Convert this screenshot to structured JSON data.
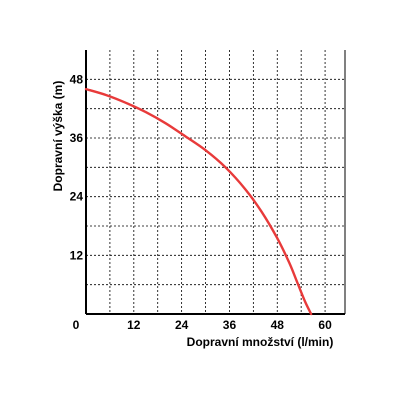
{
  "chart_data": {
    "type": "line",
    "xlabel": "Dopravní množství (l/min)",
    "ylabel": "Dopravní výška (m)",
    "xlim": [
      0,
      65
    ],
    "ylim": [
      0,
      54
    ],
    "x_ticks": [
      0,
      12,
      24,
      36,
      48,
      60
    ],
    "x_tick_labels": [
      "0",
      "12",
      "24",
      "36",
      "48",
      "60"
    ],
    "y_ticks": [
      12,
      24,
      36,
      48
    ],
    "y_tick_labels": [
      "12",
      "24",
      "36",
      "48"
    ],
    "x_minor_grid": [
      6,
      18,
      30,
      42,
      54
    ],
    "y_minor_grid": [
      6,
      18,
      30,
      42
    ],
    "grid": true,
    "series": [
      {
        "color": "#e83a3a",
        "x": [
          0,
          5,
          10,
          15,
          20,
          25,
          30,
          35,
          40,
          44,
          48,
          51,
          53,
          55,
          56.5
        ],
        "y": [
          46,
          44.8,
          43.2,
          41.3,
          39.0,
          36.3,
          33.5,
          30.0,
          25.5,
          21.0,
          15.5,
          10.5,
          6.5,
          2.5,
          0
        ]
      }
    ]
  }
}
